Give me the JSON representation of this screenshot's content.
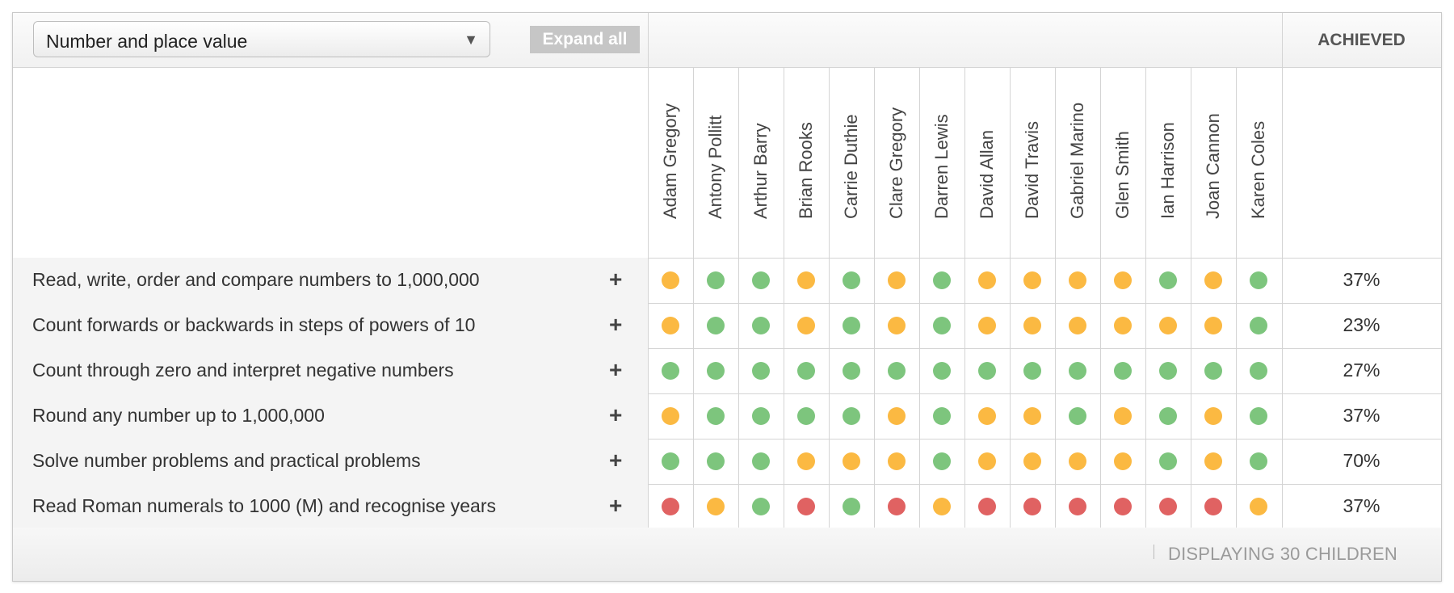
{
  "filter": {
    "selected": "Number and place value",
    "caret": "▼"
  },
  "expand_all_label": "Expand all",
  "achieved_header": "ACHIEVED",
  "children": [
    "Adam Gregory",
    "Antony Pollitt",
    "Arthur Barry",
    "Brian Rooks",
    "Carrie Duthie",
    "Clare Gregory",
    "Darren Lewis",
    "David Allan",
    "David Travis",
    "Gabriel Marino",
    "Glen Smith",
    "Ian Harrison",
    "Joan Cannon",
    "Karen Coles"
  ],
  "status_colors": {
    "green": "#7dc57d",
    "orange": "#fbb942",
    "red": "#e06262"
  },
  "objectives": [
    {
      "label": "Read, write, order and compare numbers to 1,000,000",
      "achieved": "37%",
      "statuses": [
        "orange",
        "green",
        "green",
        "orange",
        "green",
        "orange",
        "green",
        "orange",
        "orange",
        "orange",
        "orange",
        "green",
        "orange",
        "green"
      ]
    },
    {
      "label": "Count forwards or backwards in steps of powers of 10",
      "achieved": "23%",
      "statuses": [
        "orange",
        "green",
        "green",
        "orange",
        "green",
        "orange",
        "green",
        "orange",
        "orange",
        "orange",
        "orange",
        "orange",
        "orange",
        "green"
      ]
    },
    {
      "label": "Count through zero and interpret negative numbers",
      "achieved": "27%",
      "statuses": [
        "green",
        "green",
        "green",
        "green",
        "green",
        "green",
        "green",
        "green",
        "green",
        "green",
        "green",
        "green",
        "green",
        "green"
      ]
    },
    {
      "label": "Round any number up to 1,000,000",
      "achieved": "37%",
      "statuses": [
        "orange",
        "green",
        "green",
        "green",
        "green",
        "orange",
        "green",
        "orange",
        "orange",
        "green",
        "orange",
        "green",
        "orange",
        "green"
      ]
    },
    {
      "label": "Solve number problems and practical problems",
      "achieved": "70%",
      "statuses": [
        "green",
        "green",
        "green",
        "orange",
        "orange",
        "orange",
        "green",
        "orange",
        "orange",
        "orange",
        "orange",
        "green",
        "orange",
        "green"
      ]
    },
    {
      "label": "Read Roman numerals to 1000 (M) and recognise years",
      "achieved": "37%",
      "statuses": [
        "red",
        "orange",
        "green",
        "red",
        "green",
        "red",
        "orange",
        "red",
        "red",
        "red",
        "red",
        "red",
        "red",
        "orange"
      ]
    }
  ],
  "expand_icon": "+",
  "footer": {
    "text": "DISPLAYING 30 CHILDREN"
  }
}
